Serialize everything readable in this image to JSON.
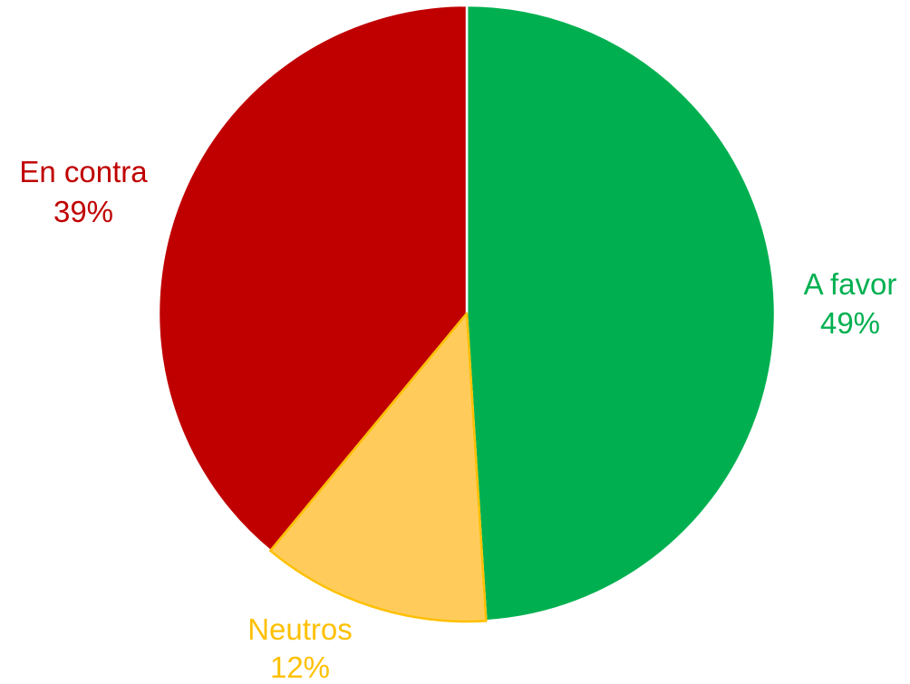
{
  "chart_data": {
    "type": "pie",
    "title": "",
    "start_angle_deg": 0,
    "direction": "clockwise",
    "slices": [
      {
        "label": "A favor",
        "value": 49,
        "value_label": "49%",
        "color": "#00B050",
        "border_color": "#FFFFFF"
      },
      {
        "label": "Neutros",
        "value": 12,
        "value_label": "12%",
        "color": "#FFCC5C",
        "border_color": "#FFC000"
      },
      {
        "label": "En contra",
        "value": 39,
        "value_label": "39%",
        "color": "#C00000",
        "border_color": "#FFFFFF"
      }
    ],
    "legend": "none",
    "label_position": "outside"
  }
}
